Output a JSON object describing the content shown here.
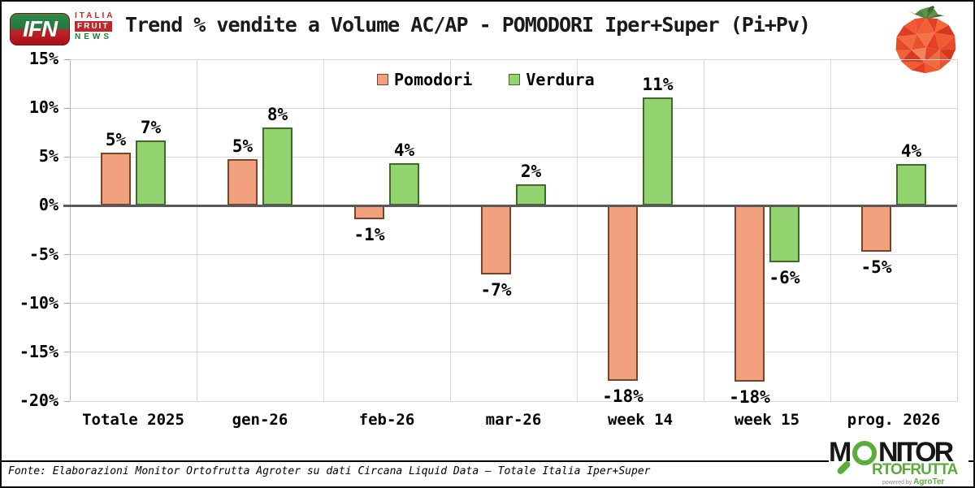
{
  "header": {
    "title": "Trend % vendite a Volume AC/AP - POMODORI Iper+Super (Pi+Pv)",
    "ifn_logo": {
      "acronym": "IFN",
      "line1": "ITALIA",
      "line2": "FRUIT",
      "line3": "NEWS"
    },
    "tomato_icon": "low-poly-tomato-icon"
  },
  "chart_data": {
    "type": "bar",
    "title": "Trend % vendite a Volume AC/AP - POMODORI Iper+Super (Pi+Pv)",
    "categories": [
      "Totale 2025",
      "gen-26",
      "feb-26",
      "mar-26",
      "week 14",
      "week 15",
      "prog. 2026"
    ],
    "series": [
      {
        "name": "Pomodori",
        "color": "#F2A17E",
        "border_color": "#7A4527",
        "values": [
          5.4,
          4.8,
          -1.4,
          -7.0,
          -17.9,
          -18.0,
          -4.7
        ],
        "labels": [
          "5%",
          "5%",
          "-1%",
          "-7%",
          "-18%",
          "-18%",
          "-5%"
        ]
      },
      {
        "name": "Verdura",
        "color": "#93D470",
        "border_color": "#3F6B2A",
        "values": [
          6.7,
          8.0,
          4.4,
          2.2,
          11.1,
          -5.8,
          4.3
        ],
        "labels": [
          "7%",
          "8%",
          "4%",
          "2%",
          "11%",
          "-6%",
          "4%"
        ]
      }
    ],
    "y_axis": {
      "min": -20,
      "max": 15,
      "step": 5,
      "tick_labels": [
        "15%",
        "10%",
        "5%",
        "0%",
        "-5%",
        "-10%",
        "-15%",
        "-20%"
      ]
    },
    "legend": {
      "position": "top-center",
      "entries": [
        "Pomodori",
        "Verdura"
      ]
    },
    "grid": true,
    "colors": {
      "gridline": "#D9D9D9",
      "zero_line": "#595959",
      "label": "#000000"
    }
  },
  "footer": {
    "source": "Fonte: Elaborazioni Monitor Ortofrutta Agroter su dati Circana Liquid Data – Totale Italia Iper+Super"
  },
  "monitor_logo": {
    "m": "M",
    "nitor": "NITOR",
    "line2": "RTOFRUTTA",
    "powered_by": "powered by",
    "brand": "AgroTer"
  }
}
